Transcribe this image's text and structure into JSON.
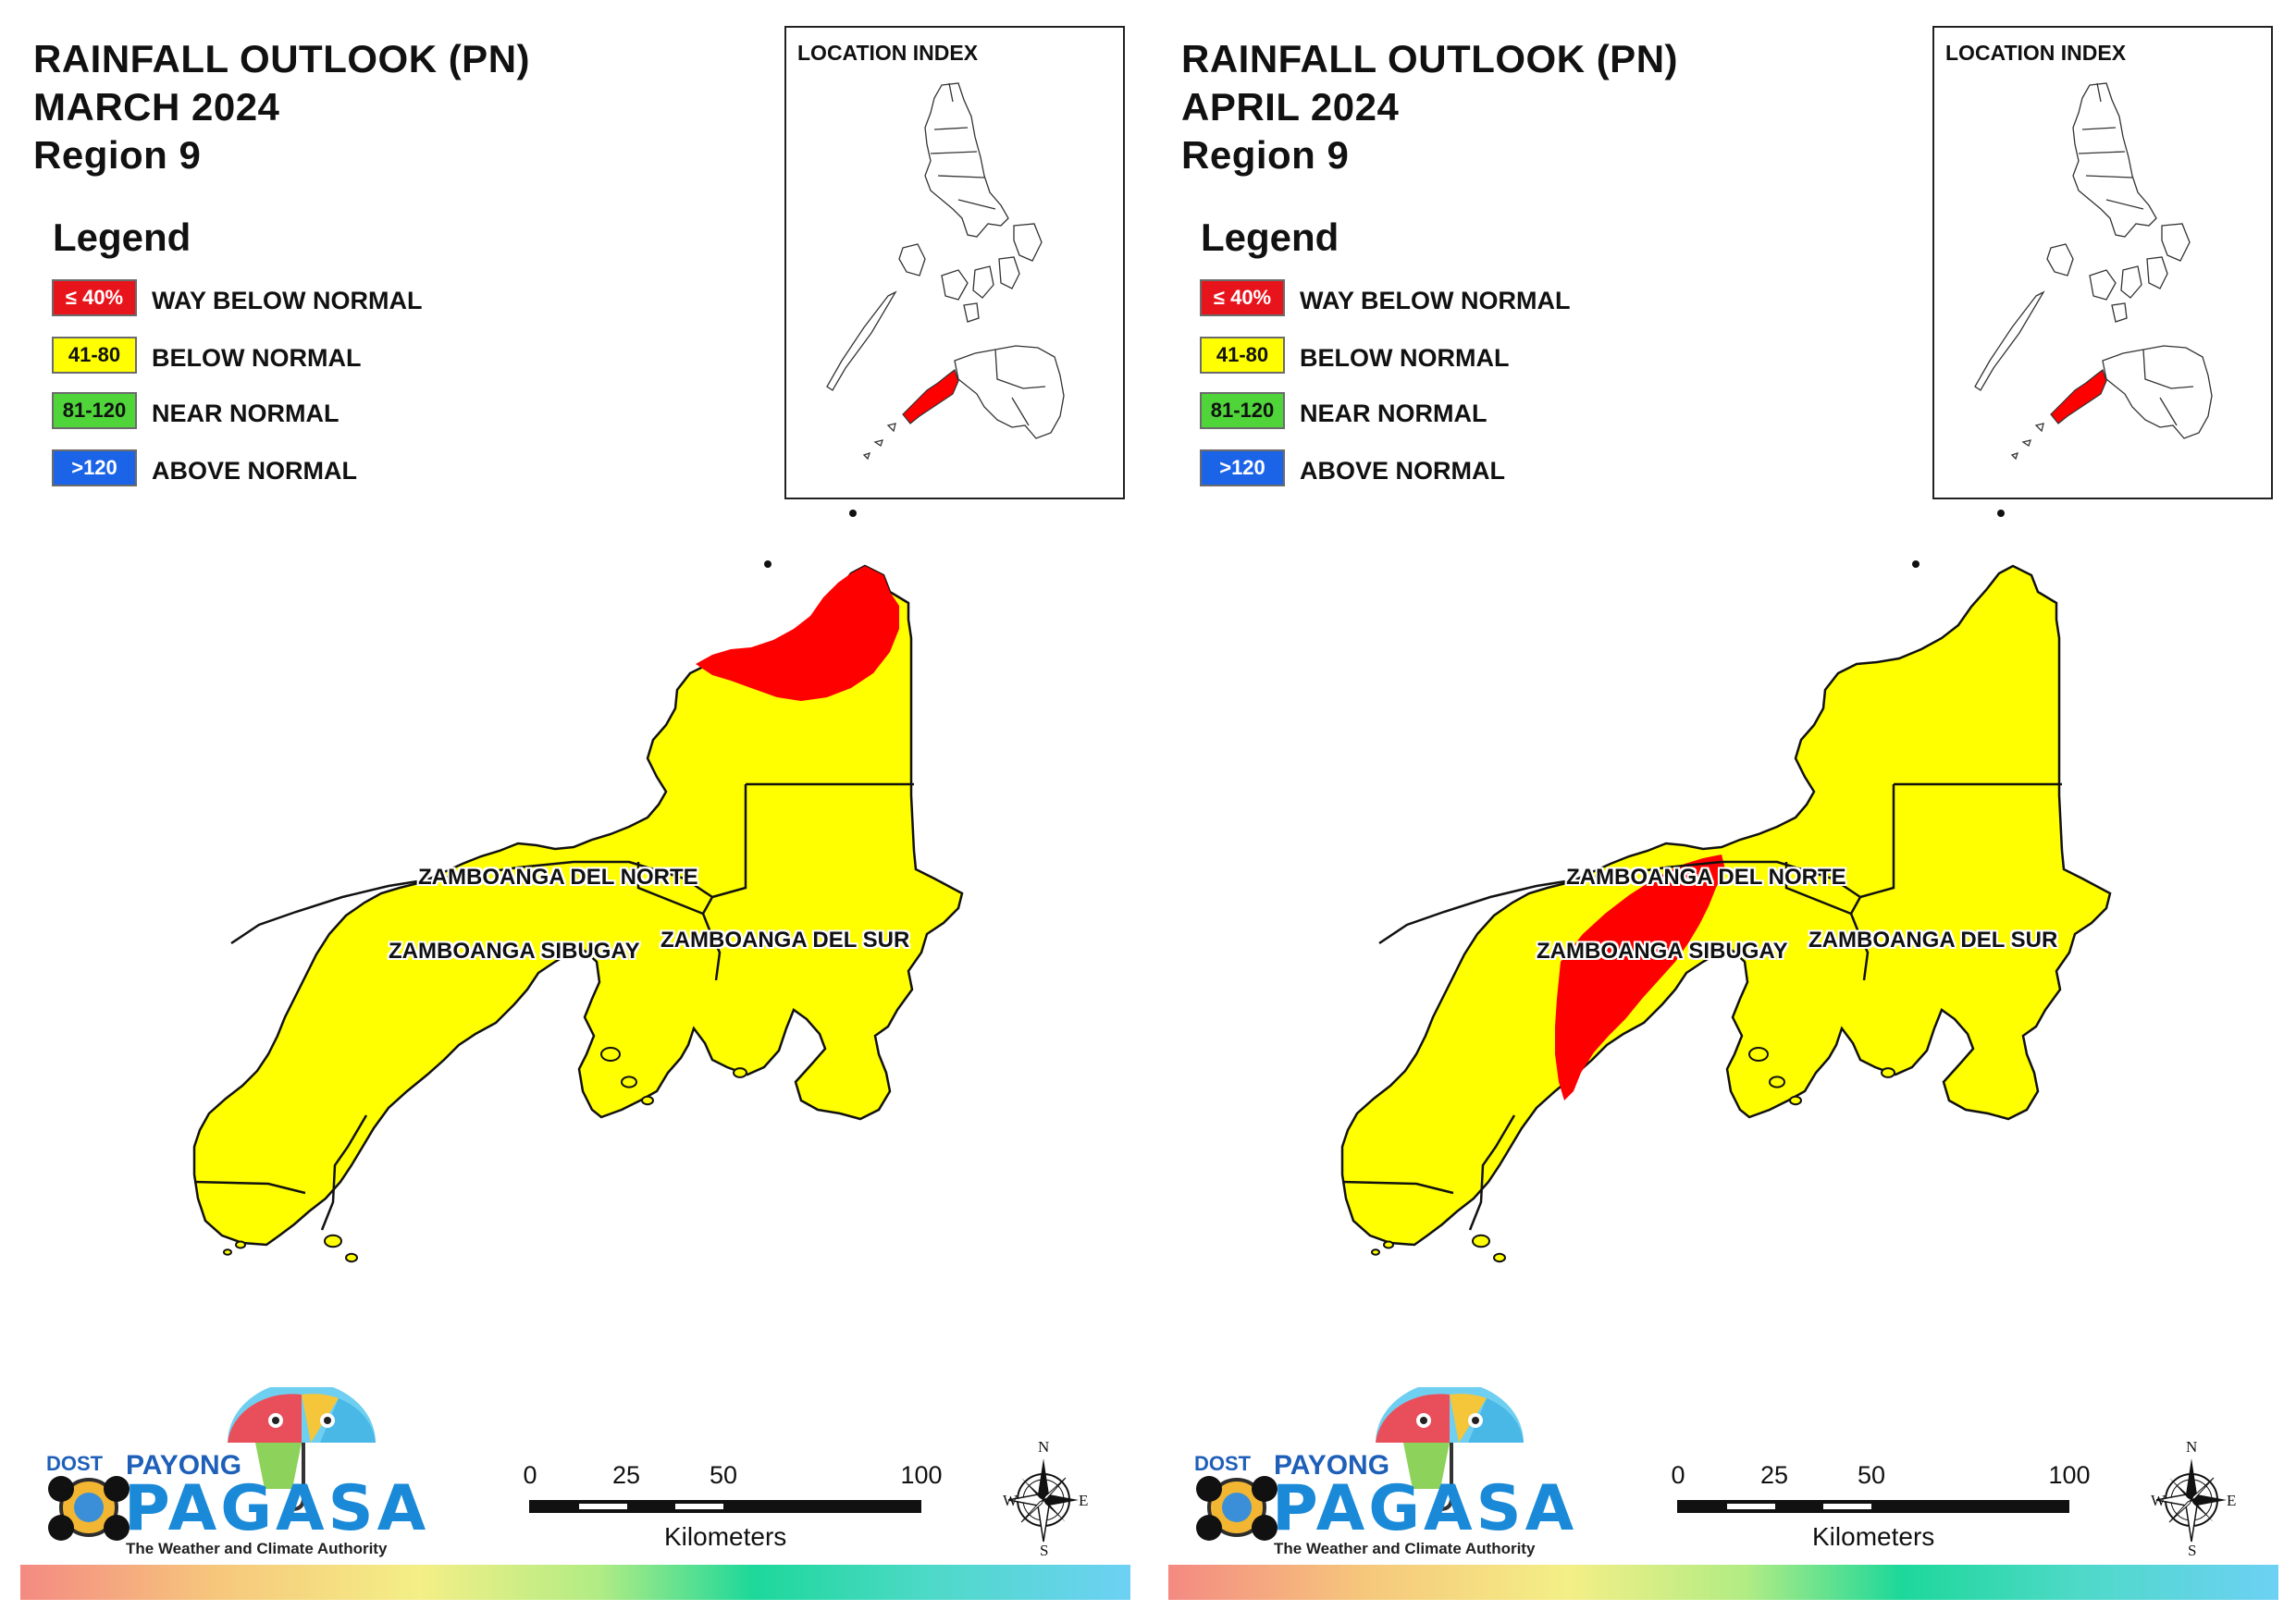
{
  "panels": [
    {
      "title_line1": "RAINFALL OUTLOOK (PN)",
      "title_line2": "MARCH 2024",
      "title_line3": "Region 9",
      "red_zone": "north-east",
      "inset_title": "LOCATION INDEX",
      "provinces": {
        "norte": "ZAMBOANGA DEL NORTE",
        "sibugay": "ZAMBOANGA SIBUGAY",
        "sur": "ZAMBOANGA DEL SUR"
      }
    },
    {
      "title_line1": "RAINFALL OUTLOOK (PN)",
      "title_line2": "APRIL 2024",
      "title_line3": "Region 9",
      "red_zone": "north-west",
      "inset_title": "LOCATION INDEX",
      "provinces": {
        "norte": "ZAMBOANGA DEL NORTE",
        "sibugay": "ZAMBOANGA SIBUGAY",
        "sur": "ZAMBOANGA DEL SUR"
      }
    }
  ],
  "legend": {
    "title": "Legend",
    "items": [
      {
        "range": "≤ 40%",
        "label": "WAY BELOW NORMAL",
        "color": "#e8141c",
        "text_color": "#ffffff"
      },
      {
        "range": "41-80",
        "label": "BELOW NORMAL",
        "color": "#ffff00",
        "text_color": "#111111"
      },
      {
        "range": "81-120",
        "label": "NEAR NORMAL",
        "color": "#4fd43a",
        "text_color": "#111111"
      },
      {
        "range": ">120",
        "label": "ABOVE NORMAL",
        "color": "#1b64e8",
        "text_color": "#ffffff"
      }
    ]
  },
  "colors": {
    "region_fill": "#ffff00",
    "outlook_red": "#ff0000",
    "outline": "#111111"
  },
  "logo": {
    "dost": "DOST",
    "payong": "PAYONG",
    "pagasa": "PAGASA",
    "tagline": "The Weather and Climate Authority"
  },
  "scale": {
    "ticks": [
      "0",
      "25",
      "50",
      "100"
    ],
    "unit": "Kilometers"
  },
  "compass": {
    "n": "N",
    "s": "S",
    "e": "E",
    "w": "W"
  }
}
